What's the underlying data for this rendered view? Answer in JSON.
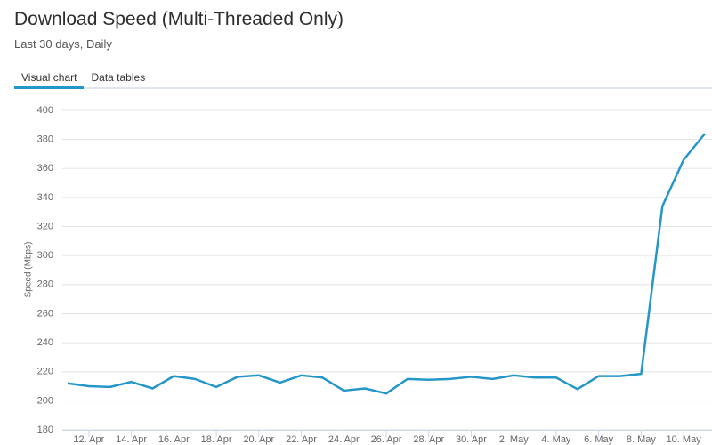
{
  "tabs": [
    "Visual chart",
    "Data tables"
  ],
  "active_tab": 0,
  "chart_data": {
    "type": "line",
    "title": "Download Speed (Multi-Threaded Only)",
    "subtitle": "Last 30 days, Daily",
    "y_label": "Speed (Mbps)",
    "categories": [
      null,
      "12. Apr",
      null,
      "14. Apr",
      null,
      "16. Apr",
      null,
      "18. Apr",
      null,
      "20. Apr",
      null,
      "22. Apr",
      null,
      "24. Apr",
      null,
      "26. Apr",
      null,
      "28. Apr",
      null,
      "30. Apr",
      null,
      "2. May",
      null,
      "4. May",
      null,
      "6. May",
      null,
      "8. May",
      null,
      "10. May",
      null
    ],
    "values": [
      212,
      210,
      209.5,
      213,
      208.5,
      217,
      215,
      209.5,
      216.5,
      217.5,
      212.5,
      217.5,
      216,
      207,
      208.5,
      205,
      215,
      214.5,
      215,
      216.5,
      215,
      217.5,
      216,
      216,
      208,
      217,
      217,
      218.5,
      334,
      366,
      384
    ],
    "color": "#2596c8",
    "ylim": [
      180,
      400
    ],
    "yticks": [
      180,
      200,
      220,
      240,
      260,
      280,
      300,
      320,
      340,
      360,
      380,
      400
    ],
    "grid": true
  }
}
